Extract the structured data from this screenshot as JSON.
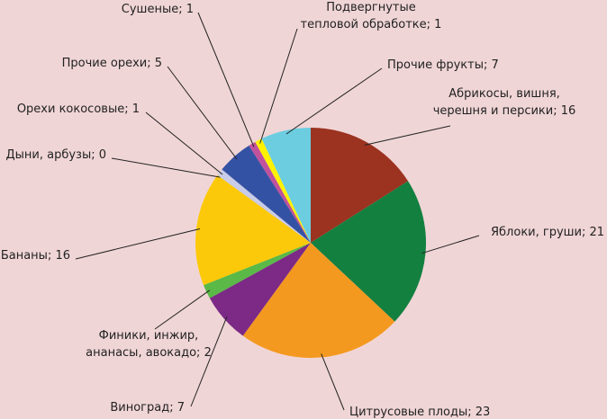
{
  "chart_data": {
    "type": "pie",
    "values": [
      16,
      21,
      23,
      7,
      2,
      16,
      0,
      1,
      5,
      1,
      1,
      7
    ],
    "value_labels": [
      "Абрикосы, вишня,\nчерешня и персики; 16",
      "Яблоки, груши; 21",
      "Цитрусовые плоды; 23",
      "Виноград; 7",
      "Финики, инжир,\nананасы, авокадо; 2",
      "Бананы; 16",
      "Дыни, арбузы; 0",
      "Орехи кокосовые; 1",
      "Прочие орехи; 5",
      "Сушеные; 1",
      "Подвергнутые\nтепловой обработке; 1",
      "Прочие фрукты; 7"
    ],
    "colors": [
      "#9b3320",
      "#138040",
      "#f4991f",
      "#7c2a86",
      "#5ab947",
      "#fcc90a",
      "#c8cce8",
      "#c8cce8",
      "#3452a4",
      "#c0529d",
      "#fff200",
      "#6ccde0"
    ]
  }
}
